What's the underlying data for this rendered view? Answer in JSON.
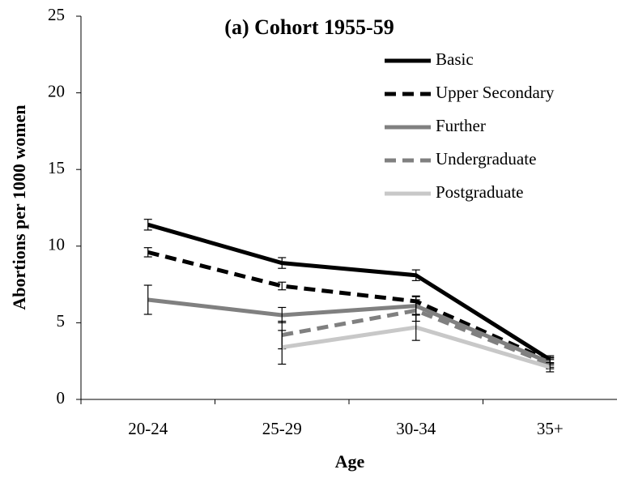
{
  "chart_data": {
    "type": "line",
    "title": "(a) Cohort 1955-59",
    "x_label": "Age",
    "y_label": "Abortions per 1000 women",
    "categories": [
      "20-24",
      "25-29",
      "30-34",
      "35+"
    ],
    "ylim": [
      0,
      25
    ],
    "yticks": [
      0,
      5,
      10,
      15,
      20,
      25
    ],
    "series": [
      {
        "name": "Basic",
        "color": "#000000",
        "dash": false,
        "values": [
          11.4,
          8.9,
          8.1,
          2.6
        ],
        "errors": [
          0.35,
          0.35,
          0.35,
          0.25
        ]
      },
      {
        "name": "Upper Secondary",
        "color": "#000000",
        "dash": true,
        "values": [
          9.6,
          7.4,
          6.4,
          2.5
        ],
        "errors": [
          0.3,
          0.25,
          0.35,
          0.25
        ]
      },
      {
        "name": "Further",
        "color": "#808080",
        "dash": false,
        "values": [
          6.5,
          5.5,
          6.1,
          2.4
        ],
        "errors": [
          0.95,
          0.5,
          0.6,
          0.3
        ]
      },
      {
        "name": "Undergraduate",
        "color": "#808080",
        "dash": true,
        "values": [
          null,
          4.2,
          5.8,
          2.3
        ],
        "errors": [
          null,
          0.9,
          0.7,
          0.3
        ]
      },
      {
        "name": "Postgraduate",
        "color": "#c8c8c8",
        "dash": false,
        "values": [
          null,
          3.4,
          4.7,
          2.1
        ],
        "errors": [
          null,
          1.1,
          0.85,
          0.3
        ]
      }
    ]
  }
}
